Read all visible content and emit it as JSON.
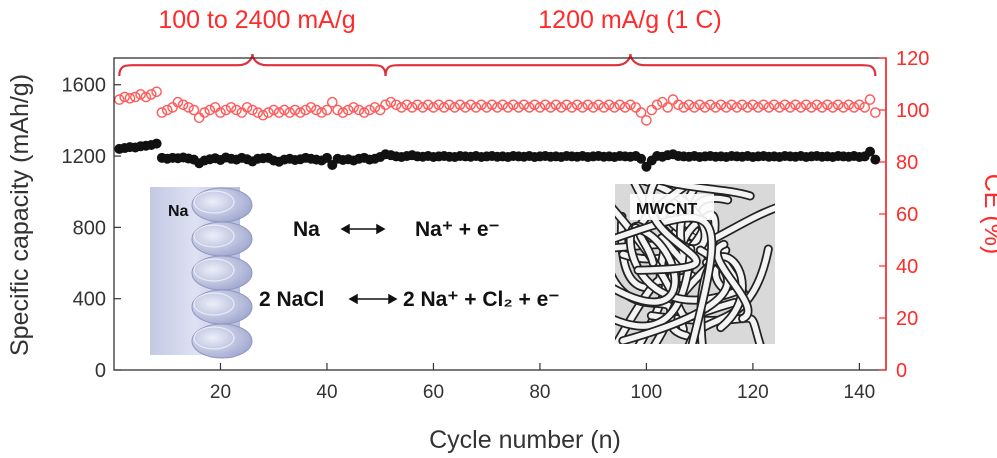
{
  "chart_data": {
    "type": "scatter",
    "xlabel": "Cycle number (n)",
    "ylabel": "Specific capacity (mAh/g)",
    "y2label": "CE (%)",
    "xlim": [
      0,
      145
    ],
    "ylim": [
      0,
      1750
    ],
    "y2lim": [
      0,
      120
    ],
    "x_ticks": [
      20,
      40,
      60,
      80,
      100,
      120,
      140
    ],
    "y_ticks": [
      0,
      400,
      800,
      1200,
      1600
    ],
    "y2_ticks": [
      0,
      20,
      40,
      60,
      80,
      100,
      120
    ],
    "annotations": {
      "rate_label_left": "100 to 2400 mA/g",
      "rate_label_right": "1200 mA/g (1 C)",
      "eq1_left": "Na",
      "eq1_right": "Na⁺ + e⁻",
      "eq2_left": "2 NaCl",
      "eq2_right": "2 Na⁺ + Cl₂ + e⁻",
      "inset_left_label": "Na",
      "inset_right_label": "MWCNT"
    },
    "series": [
      {
        "axis": "left",
        "color": "#111111",
        "marker": "filled-circle",
        "points": [
          [
            1,
            1240
          ],
          [
            2,
            1245
          ],
          [
            3,
            1250
          ],
          [
            4,
            1248
          ],
          [
            5,
            1255
          ],
          [
            6,
            1258
          ],
          [
            7,
            1262
          ],
          [
            8,
            1270
          ],
          [
            9,
            1190
          ],
          [
            10,
            1185
          ],
          [
            11,
            1190
          ],
          [
            12,
            1188
          ],
          [
            13,
            1192
          ],
          [
            14,
            1186
          ],
          [
            15,
            1180
          ],
          [
            16,
            1160
          ],
          [
            17,
            1175
          ],
          [
            18,
            1182
          ],
          [
            19,
            1188
          ],
          [
            20,
            1178
          ],
          [
            21,
            1192
          ],
          [
            22,
            1185
          ],
          [
            23,
            1180
          ],
          [
            24,
            1190
          ],
          [
            25,
            1182
          ],
          [
            26,
            1170
          ],
          [
            27,
            1185
          ],
          [
            28,
            1188
          ],
          [
            29,
            1190
          ],
          [
            30,
            1175
          ],
          [
            31,
            1168
          ],
          [
            32,
            1180
          ],
          [
            33,
            1185
          ],
          [
            34,
            1178
          ],
          [
            35,
            1182
          ],
          [
            36,
            1190
          ],
          [
            37,
            1185
          ],
          [
            38,
            1180
          ],
          [
            39,
            1175
          ],
          [
            40,
            1190
          ],
          [
            41,
            1150
          ],
          [
            42,
            1185
          ],
          [
            43,
            1178
          ],
          [
            44,
            1182
          ],
          [
            45,
            1175
          ],
          [
            46,
            1185
          ],
          [
            47,
            1190
          ],
          [
            48,
            1180
          ],
          [
            49,
            1185
          ],
          [
            50,
            1195
          ],
          [
            51,
            1210
          ],
          [
            52,
            1205
          ],
          [
            53,
            1198
          ],
          [
            54,
            1195
          ],
          [
            55,
            1200
          ],
          [
            56,
            1205
          ],
          [
            57,
            1198
          ],
          [
            58,
            1196
          ],
          [
            59,
            1200
          ],
          [
            60,
            1195
          ],
          [
            61,
            1198
          ],
          [
            62,
            1200
          ],
          [
            63,
            1196
          ],
          [
            64,
            1195
          ],
          [
            65,
            1200
          ],
          [
            66,
            1198
          ],
          [
            67,
            1196
          ],
          [
            68,
            1200
          ],
          [
            69,
            1195
          ],
          [
            70,
            1198
          ],
          [
            71,
            1200
          ],
          [
            72,
            1196
          ],
          [
            73,
            1198
          ],
          [
            74,
            1195
          ],
          [
            75,
            1200
          ],
          [
            76,
            1198
          ],
          [
            77,
            1196
          ],
          [
            78,
            1200
          ],
          [
            79,
            1195
          ],
          [
            80,
            1198
          ],
          [
            81,
            1200
          ],
          [
            82,
            1196
          ],
          [
            83,
            1198
          ],
          [
            84,
            1195
          ],
          [
            85,
            1200
          ],
          [
            86,
            1198
          ],
          [
            87,
            1196
          ],
          [
            88,
            1200
          ],
          [
            89,
            1195
          ],
          [
            90,
            1198
          ],
          [
            91,
            1200
          ],
          [
            92,
            1196
          ],
          [
            93,
            1198
          ],
          [
            94,
            1195
          ],
          [
            95,
            1200
          ],
          [
            96,
            1198
          ],
          [
            97,
            1196
          ],
          [
            98,
            1200
          ],
          [
            99,
            1185
          ],
          [
            100,
            1140
          ],
          [
            101,
            1175
          ],
          [
            102,
            1200
          ],
          [
            103,
            1196
          ],
          [
            104,
            1205
          ],
          [
            105,
            1210
          ],
          [
            106,
            1200
          ],
          [
            107,
            1198
          ],
          [
            108,
            1196
          ],
          [
            109,
            1200
          ],
          [
            110,
            1195
          ],
          [
            111,
            1198
          ],
          [
            112,
            1200
          ],
          [
            113,
            1196
          ],
          [
            114,
            1198
          ],
          [
            115,
            1195
          ],
          [
            116,
            1200
          ],
          [
            117,
            1198
          ],
          [
            118,
            1196
          ],
          [
            119,
            1200
          ],
          [
            120,
            1195
          ],
          [
            121,
            1198
          ],
          [
            122,
            1200
          ],
          [
            123,
            1196
          ],
          [
            124,
            1198
          ],
          [
            125,
            1195
          ],
          [
            126,
            1200
          ],
          [
            127,
            1198
          ],
          [
            128,
            1196
          ],
          [
            129,
            1200
          ],
          [
            130,
            1195
          ],
          [
            131,
            1198
          ],
          [
            132,
            1200
          ],
          [
            133,
            1196
          ],
          [
            134,
            1198
          ],
          [
            135,
            1195
          ],
          [
            136,
            1200
          ],
          [
            137,
            1198
          ],
          [
            138,
            1196
          ],
          [
            139,
            1200
          ],
          [
            140,
            1195
          ],
          [
            141,
            1198
          ],
          [
            142,
            1225
          ],
          [
            143,
            1180
          ]
        ]
      },
      {
        "axis": "right",
        "color": "#ff5a5a",
        "marker": "open-circle",
        "points": [
          [
            1,
            104
          ],
          [
            2,
            105
          ],
          [
            3,
            104.5
          ],
          [
            4,
            105
          ],
          [
            5,
            106
          ],
          [
            6,
            105
          ],
          [
            7,
            106
          ],
          [
            8,
            107
          ],
          [
            9,
            99
          ],
          [
            10,
            100
          ],
          [
            11,
            101
          ],
          [
            12,
            103
          ],
          [
            13,
            102
          ],
          [
            14,
            101
          ],
          [
            15,
            100
          ],
          [
            16,
            97
          ],
          [
            17,
            99
          ],
          [
            18,
            100
          ],
          [
            19,
            101
          ],
          [
            20,
            99
          ],
          [
            21,
            100
          ],
          [
            22,
            101
          ],
          [
            23,
            100
          ],
          [
            24,
            99
          ],
          [
            25,
            101
          ],
          [
            26,
            100
          ],
          [
            27,
            99
          ],
          [
            28,
            98
          ],
          [
            29,
            99
          ],
          [
            30,
            100
          ],
          [
            31,
            99
          ],
          [
            32,
            100
          ],
          [
            33,
            99
          ],
          [
            34,
            100
          ],
          [
            35,
            99
          ],
          [
            36,
            100
          ],
          [
            37,
            101
          ],
          [
            38,
            100
          ],
          [
            39,
            99
          ],
          [
            40,
            100
          ],
          [
            41,
            103
          ],
          [
            42,
            100
          ],
          [
            43,
            99
          ],
          [
            44,
            100
          ],
          [
            45,
            101
          ],
          [
            46,
            100
          ],
          [
            47,
            99
          ],
          [
            48,
            100
          ],
          [
            49,
            101
          ],
          [
            50,
            100
          ],
          [
            51,
            102
          ],
          [
            52,
            103
          ],
          [
            53,
            102
          ],
          [
            54,
            101
          ],
          [
            55,
            102
          ],
          [
            56,
            101
          ],
          [
            57,
            102
          ],
          [
            58,
            101
          ],
          [
            59,
            102
          ],
          [
            60,
            101
          ],
          [
            61,
            102
          ],
          [
            62,
            101
          ],
          [
            63,
            102
          ],
          [
            64,
            101
          ],
          [
            65,
            102
          ],
          [
            66,
            101
          ],
          [
            67,
            102
          ],
          [
            68,
            101
          ],
          [
            69,
            102
          ],
          [
            70,
            101
          ],
          [
            71,
            102
          ],
          [
            72,
            101
          ],
          [
            73,
            102
          ],
          [
            74,
            101
          ],
          [
            75,
            102
          ],
          [
            76,
            101
          ],
          [
            77,
            102
          ],
          [
            78,
            101
          ],
          [
            79,
            102
          ],
          [
            80,
            101
          ],
          [
            81,
            102
          ],
          [
            82,
            101
          ],
          [
            83,
            102
          ],
          [
            84,
            101
          ],
          [
            85,
            102
          ],
          [
            86,
            101
          ],
          [
            87,
            102
          ],
          [
            88,
            101
          ],
          [
            89,
            102
          ],
          [
            90,
            101
          ],
          [
            91,
            102
          ],
          [
            92,
            101
          ],
          [
            93,
            102
          ],
          [
            94,
            101
          ],
          [
            95,
            102
          ],
          [
            96,
            101
          ],
          [
            97,
            102
          ],
          [
            98,
            101
          ],
          [
            99,
            99
          ],
          [
            100,
            96
          ],
          [
            101,
            100
          ],
          [
            102,
            102
          ],
          [
            103,
            103
          ],
          [
            104,
            101
          ],
          [
            105,
            104
          ],
          [
            106,
            102
          ],
          [
            107,
            101
          ],
          [
            108,
            102
          ],
          [
            109,
            101
          ],
          [
            110,
            102
          ],
          [
            111,
            101
          ],
          [
            112,
            102
          ],
          [
            113,
            101
          ],
          [
            114,
            102
          ],
          [
            115,
            101
          ],
          [
            116,
            102
          ],
          [
            117,
            101
          ],
          [
            118,
            102
          ],
          [
            119,
            101
          ],
          [
            120,
            102
          ],
          [
            121,
            101
          ],
          [
            122,
            102
          ],
          [
            123,
            101
          ],
          [
            124,
            102
          ],
          [
            125,
            101
          ],
          [
            126,
            102
          ],
          [
            127,
            101
          ],
          [
            128,
            102
          ],
          [
            129,
            101
          ],
          [
            130,
            102
          ],
          [
            131,
            101
          ],
          [
            132,
            102
          ],
          [
            133,
            101
          ],
          [
            134,
            102
          ],
          [
            135,
            101
          ],
          [
            136,
            102
          ],
          [
            137,
            101
          ],
          [
            138,
            102
          ],
          [
            139,
            101
          ],
          [
            140,
            102
          ],
          [
            141,
            101
          ],
          [
            142,
            104
          ],
          [
            143,
            99
          ]
        ]
      }
    ],
    "brackets": [
      {
        "from": 1,
        "to": 51,
        "peak": 26
      },
      {
        "from": 51,
        "to": 143,
        "peak": 97
      }
    ]
  },
  "colors": {
    "capacity": "#111111",
    "ce": "#ff5a5a",
    "right_axis": "#ff2a2a",
    "bracket": "#e0303a"
  }
}
